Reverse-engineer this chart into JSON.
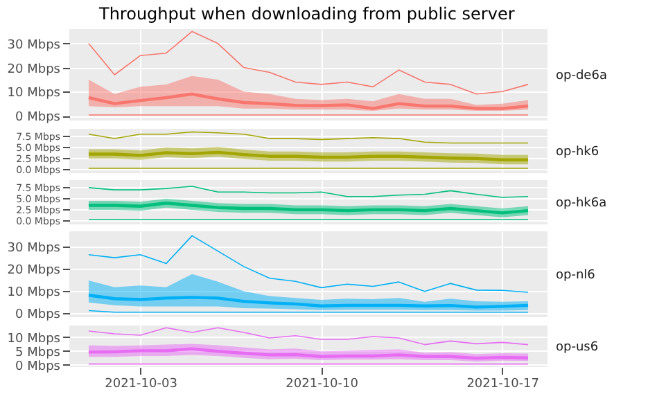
{
  "chart_data": [
    {
      "type": "line",
      "title": "Throughput when downloading from public server",
      "ylabel": "op-de6a",
      "grid": true,
      "tick_labels": "y",
      "x": [
        "2021-10-01",
        "2021-10-02",
        "2021-10-03",
        "2021-10-04",
        "2021-10-05",
        "2021-10-06",
        "2021-10-07",
        "2021-10-08",
        "2021-10-09",
        "2021-10-10",
        "2021-10-11",
        "2021-10-12",
        "2021-10-13",
        "2021-10-14",
        "2021-10-15",
        "2021-10-16",
        "2021-10-17",
        "2021-10-18"
      ],
      "xlim": [
        "2021-09-30T06:00",
        "2021-10-18T18:00"
      ],
      "xticks": [
        "2021-10-03",
        "2021-10-10",
        "2021-10-17"
      ],
      "ylim": [
        -2,
        36
      ],
      "yticks": [
        {
          "value": 0,
          "label": "0 Mbps"
        },
        {
          "value": 10,
          "label": "10 Mbps"
        },
        {
          "value": 20,
          "label": "20 Mbps"
        },
        {
          "value": 30,
          "label": "30 Mbps"
        }
      ],
      "series": [
        {
          "color": "#f8766d",
          "values": [
            30,
            17,
            25,
            26,
            35,
            30,
            20,
            18,
            14,
            13,
            14,
            12,
            19,
            14,
            13,
            9,
            10,
            13
          ]
        },
        {
          "color": "#f8766d",
          "values": [
            7.5,
            5,
            6.3,
            7.5,
            9,
            7,
            5.5,
            5,
            4.3,
            4.2,
            4.5,
            3,
            5,
            4,
            4,
            3,
            3,
            4
          ],
          "upper": [
            15,
            9,
            12,
            13,
            16.5,
            15,
            10,
            9,
            7,
            6.5,
            7,
            6,
            9,
            7,
            7,
            4.5,
            5,
            6.5
          ],
          "lower": [
            4,
            3.5,
            4,
            4,
            4,
            4,
            3,
            3,
            2.5,
            2.5,
            2.5,
            2,
            3,
            2.5,
            2.5,
            2,
            2,
            2.5
          ]
        },
        {
          "color": "#f8766d",
          "values": [
            0.3,
            0.3,
            0.3,
            0.3,
            0.3,
            0.3,
            0.3,
            0.3,
            0.3,
            0.3,
            0.3,
            0.3,
            0.3,
            0.3,
            0.3,
            0.3,
            0.3,
            0.3
          ]
        }
      ]
    },
    {
      "type": "line",
      "ylabel": "op-hk6",
      "grid": true,
      "tick_labels": "y",
      "x": [
        "2021-10-01",
        "2021-10-02",
        "2021-10-03",
        "2021-10-04",
        "2021-10-05",
        "2021-10-06",
        "2021-10-07",
        "2021-10-08",
        "2021-10-09",
        "2021-10-10",
        "2021-10-11",
        "2021-10-12",
        "2021-10-13",
        "2021-10-14",
        "2021-10-15",
        "2021-10-16",
        "2021-10-17",
        "2021-10-18"
      ],
      "xlim": [
        "2021-09-30T06:00",
        "2021-10-18T18:00"
      ],
      "xticks": [
        "2021-10-03",
        "2021-10-10",
        "2021-10-17"
      ],
      "ylim": [
        -0.8,
        9.2
      ],
      "yticks": [
        {
          "value": 0,
          "label": "0.0 Mbps"
        },
        {
          "value": 2.5,
          "label": "2.5 Mbps"
        },
        {
          "value": 5,
          "label": "5.0 Mbps"
        },
        {
          "value": 7.5,
          "label": "7.5 Mbps"
        }
      ],
      "series": [
        {
          "color": "#a3a500",
          "values": [
            8,
            7,
            8,
            8,
            8.5,
            8.3,
            8,
            7,
            7,
            6.8,
            7,
            7.2,
            7,
            6.2,
            6,
            6,
            6,
            6
          ]
        },
        {
          "color": "#a3a500",
          "values": [
            3.5,
            3.5,
            3.2,
            3.8,
            3.6,
            3.9,
            3.4,
            3,
            3,
            2.8,
            2.8,
            3,
            3,
            2.8,
            2.6,
            2.5,
            2.2,
            2.2
          ],
          "upper": [
            4.6,
            4.6,
            4.3,
            5,
            4.8,
            5.1,
            4.5,
            4.1,
            4.1,
            3.9,
            3.9,
            4.1,
            4.1,
            3.9,
            3.7,
            3.6,
            3.3,
            3.3
          ],
          "lower": [
            2.5,
            2.5,
            2.2,
            2.8,
            2.6,
            2.9,
            2.4,
            2,
            2,
            1.8,
            1.8,
            2,
            2,
            1.8,
            1.6,
            1.5,
            1.2,
            1.2
          ]
        },
        {
          "color": "#a3a500",
          "values": [
            0.3,
            0.3,
            0.3,
            0.3,
            0.3,
            0.3,
            0.3,
            0.3,
            0.3,
            0.3,
            0.3,
            0.3,
            0.3,
            0.3,
            0.3,
            0.3,
            0.3,
            0.3
          ]
        }
      ]
    },
    {
      "type": "line",
      "ylabel": "op-hk6a",
      "grid": true,
      "tick_labels": "y",
      "x": [
        "2021-10-01",
        "2021-10-02",
        "2021-10-03",
        "2021-10-04",
        "2021-10-05",
        "2021-10-06",
        "2021-10-07",
        "2021-10-08",
        "2021-10-09",
        "2021-10-10",
        "2021-10-11",
        "2021-10-12",
        "2021-10-13",
        "2021-10-14",
        "2021-10-15",
        "2021-10-16",
        "2021-10-17",
        "2021-10-18"
      ],
      "xlim": [
        "2021-09-30T06:00",
        "2021-10-18T18:00"
      ],
      "xticks": [
        "2021-10-03",
        "2021-10-10",
        "2021-10-17"
      ],
      "ylim": [
        -0.8,
        9.2
      ],
      "yticks": [
        {
          "value": 0,
          "label": "0.0 Mbps"
        },
        {
          "value": 2.5,
          "label": "2.5 Mbps"
        },
        {
          "value": 5,
          "label": "5.0 Mbps"
        },
        {
          "value": 7.5,
          "label": "7.5 Mbps"
        }
      ],
      "series": [
        {
          "color": "#00bf7d",
          "values": [
            7.5,
            7,
            7,
            7.3,
            7.8,
            6.5,
            6.5,
            6.3,
            6.3,
            6.5,
            5.5,
            5.5,
            5.8,
            6,
            6.8,
            6,
            5.3,
            5.5
          ]
        },
        {
          "color": "#00bf7d",
          "values": [
            3.5,
            3.5,
            3.3,
            4,
            3.5,
            3,
            2.8,
            2.8,
            2.5,
            2.5,
            2.3,
            2.5,
            2.5,
            2.3,
            2.8,
            2.3,
            1.8,
            2.3
          ],
          "upper": [
            4.5,
            4.5,
            4.3,
            5,
            4.5,
            4,
            3.8,
            3.8,
            3.5,
            3.5,
            3.3,
            3.5,
            3.5,
            3.3,
            3.8,
            3.3,
            2.8,
            3.3
          ],
          "lower": [
            2.5,
            2.5,
            2.3,
            3,
            2.5,
            2,
            1.8,
            1.8,
            1.5,
            1.5,
            1.3,
            1.5,
            1.5,
            1.3,
            1.8,
            1.3,
            0.8,
            1.3
          ]
        },
        {
          "color": "#00bf7d",
          "values": [
            0.3,
            0.3,
            0.3,
            0.3,
            0.3,
            0.3,
            0.3,
            0.3,
            0.3,
            0.3,
            0.3,
            0.3,
            0.3,
            0.3,
            0.3,
            0.3,
            0.3,
            0.3
          ]
        }
      ]
    },
    {
      "type": "line",
      "ylabel": "op-nl6",
      "grid": true,
      "tick_labels": "y",
      "x": [
        "2021-10-01",
        "2021-10-02",
        "2021-10-03",
        "2021-10-04",
        "2021-10-05",
        "2021-10-06",
        "2021-10-07",
        "2021-10-08",
        "2021-10-09",
        "2021-10-10",
        "2021-10-11",
        "2021-10-12",
        "2021-10-13",
        "2021-10-14",
        "2021-10-15",
        "2021-10-16",
        "2021-10-17",
        "2021-10-18"
      ],
      "xlim": [
        "2021-09-30T06:00",
        "2021-10-18T18:00"
      ],
      "xticks": [
        "2021-10-03",
        "2021-10-10",
        "2021-10-17"
      ],
      "ylim": [
        -2,
        37
      ],
      "yticks": [
        {
          "value": 0,
          "label": "0 Mbps"
        },
        {
          "value": 10,
          "label": "10 Mbps"
        },
        {
          "value": 20,
          "label": "20 Mbps"
        },
        {
          "value": 30,
          "label": "30 Mbps"
        }
      ],
      "series": [
        {
          "color": "#00b0f6",
          "values": [
            26.4,
            25,
            26.4,
            22.4,
            35,
            28,
            21,
            15.7,
            14.3,
            11.4,
            13,
            12,
            14,
            9.7,
            13.3,
            10.3,
            10.2,
            9.3
          ]
        },
        {
          "color": "#00b0f6",
          "values": [
            8,
            6.4,
            6,
            6.7,
            7,
            6.7,
            5.2,
            4.5,
            4,
            3.1,
            3.4,
            3.4,
            3.4,
            3.1,
            3.3,
            2.6,
            2.9,
            3.4
          ],
          "upper": [
            14.7,
            11.6,
            12.4,
            11.6,
            17.6,
            14.1,
            9.8,
            7.6,
            6.7,
            5.9,
            6.4,
            6.2,
            6.7,
            5,
            6.4,
            5.2,
            5,
            5.2
          ],
          "lower": [
            4.7,
            3.4,
            2.9,
            2.9,
            2.9,
            2.9,
            2.1,
            1.9,
            1.6,
            1.2,
            1.4,
            1.4,
            1.4,
            1.2,
            1.2,
            1,
            1,
            1.2
          ]
        },
        {
          "color": "#00b0f6",
          "values": [
            1,
            0.3,
            0.3,
            0.3,
            0.3,
            0.3,
            0.3,
            0.3,
            0.3,
            0.3,
            0.3,
            0.3,
            0.3,
            0.3,
            0.3,
            0.3,
            0.3,
            0.3
          ]
        }
      ]
    },
    {
      "type": "line",
      "ylabel": "op-us6",
      "grid": true,
      "x": [
        "2021-10-01",
        "2021-10-02",
        "2021-10-03",
        "2021-10-04",
        "2021-10-05",
        "2021-10-06",
        "2021-10-07",
        "2021-10-08",
        "2021-10-09",
        "2021-10-10",
        "2021-10-11",
        "2021-10-12",
        "2021-10-13",
        "2021-10-14",
        "2021-10-15",
        "2021-10-16",
        "2021-10-17",
        "2021-10-18"
      ],
      "xlim": [
        "2021-09-30T06:00",
        "2021-10-18T18:00"
      ],
      "xticks": [
        "2021-10-03",
        "2021-10-10",
        "2021-10-17"
      ],
      "ylim": [
        -0.8,
        14.2
      ],
      "yticks": [
        {
          "value": 0,
          "label": "0 Mbps"
        },
        {
          "value": 5,
          "label": "5 Mbps"
        },
        {
          "value": 10,
          "label": "10 Mbps"
        }
      ],
      "series": [
        {
          "color": "#e76bf3",
          "values": [
            12.2,
            11.2,
            10.7,
            13.4,
            11.7,
            13.4,
            11.7,
            9.7,
            10.5,
            9.2,
            9.2,
            10.2,
            9.7,
            7.3,
            8.6,
            7.6,
            8.1,
            7.3
          ]
        },
        {
          "color": "#e76bf3",
          "values": [
            4.6,
            4.7,
            5.1,
            5.1,
            5.8,
            4.9,
            4.2,
            3.6,
            3.7,
            3,
            3.2,
            3.2,
            3.6,
            3,
            3,
            2.4,
            2.7,
            2.5
          ],
          "upper": [
            7.1,
            6.8,
            7,
            7.3,
            7.6,
            7.1,
            6.3,
            5.6,
            5.9,
            4.9,
            5.1,
            5.4,
            5.6,
            4.4,
            4.6,
            3.9,
            4.2,
            4.1
          ],
          "lower": [
            2.9,
            2.9,
            3.2,
            3.2,
            3.6,
            3.2,
            2.5,
            2,
            2.2,
            1.7,
            1.9,
            1.9,
            2,
            1.7,
            1.7,
            1.2,
            1.5,
            1.4
          ]
        },
        {
          "color": "#e76bf3",
          "values": [
            0.3,
            0.3,
            0.3,
            0.3,
            0.3,
            0.3,
            0.3,
            0.3,
            0.3,
            0.3,
            0.3,
            0.3,
            0.3,
            0.3,
            0.3,
            0.3,
            0.3,
            0.3
          ]
        }
      ]
    }
  ]
}
